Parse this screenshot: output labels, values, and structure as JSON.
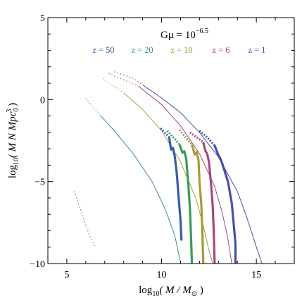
{
  "chart_data": {
    "type": "line",
    "title_main": "Gμ = 10",
    "title_exp": "−6.5",
    "xlabel": {
      "pre": "log",
      "sub": "10",
      "mid": "( M / M",
      "sub2": "⊙",
      "post": " )"
    },
    "ylabel": {
      "pre": "log",
      "sub": "10",
      "mid": "( M N Mpc",
      "sub2": "0",
      "sup": "3",
      "post": " )"
    },
    "xlim": [
      4,
      17
    ],
    "ylim": [
      -10,
      5
    ],
    "x_ticks": [
      {
        "value": 5,
        "label": "5"
      },
      {
        "value": 10,
        "label": "10"
      },
      {
        "value": 15,
        "label": "15"
      }
    ],
    "y_ticks": [
      {
        "value": 5,
        "label": "5"
      },
      {
        "value": 0,
        "label": "0"
      },
      {
        "value": -5,
        "label": "−5"
      },
      {
        "value": -10,
        "label": "−10"
      }
    ],
    "grid": false,
    "legend_placement": "top-center",
    "series": [
      {
        "name": "z = 1",
        "color": "#4a4ea6",
        "thin_dotted": [
          [
            7.5,
            1.7
          ],
          [
            8.5,
            1.3
          ],
          [
            9.0,
            0.9
          ]
        ],
        "thin": [
          [
            9.0,
            0.9
          ],
          [
            10.0,
            0.1
          ],
          [
            11.0,
            -0.8
          ],
          [
            12.0,
            -2.0
          ],
          [
            13.0,
            -3.5
          ],
          [
            14.0,
            -5.6
          ],
          [
            14.5,
            -7.2
          ],
          [
            15.0,
            -9.0
          ],
          [
            15.3,
            -10.0
          ]
        ],
        "thick_dotted": [
          [
            12.0,
            -1.9
          ],
          [
            12.4,
            -2.3
          ],
          [
            12.8,
            -2.8
          ]
        ],
        "thick": [
          [
            12.8,
            -2.8
          ],
          [
            13.0,
            -3.4
          ],
          [
            13.1,
            -3.6
          ],
          [
            13.2,
            -3.9
          ],
          [
            13.5,
            -5.0
          ],
          [
            13.7,
            -6.3
          ],
          [
            13.8,
            -7.5
          ],
          [
            13.9,
            -8.8
          ],
          [
            13.9,
            -10.0
          ]
        ]
      },
      {
        "name": "z = 6",
        "color": "#a6487f",
        "thin_dotted": [
          [
            7.2,
            1.6
          ],
          [
            8.2,
            1.1
          ],
          [
            8.8,
            0.8
          ]
        ],
        "thin": [
          [
            8.8,
            0.8
          ],
          [
            10.0,
            -0.3
          ],
          [
            11.0,
            -1.6
          ],
          [
            12.0,
            -3.3
          ],
          [
            12.8,
            -5.3
          ],
          [
            13.2,
            -6.9
          ],
          [
            13.5,
            -8.5
          ],
          [
            13.7,
            -10.0
          ]
        ],
        "thick_dotted": [
          [
            11.5,
            -2.0
          ],
          [
            11.85,
            -2.3
          ],
          [
            12.2,
            -2.6
          ]
        ],
        "thick": [
          [
            12.2,
            -2.6
          ],
          [
            12.3,
            -3.1
          ],
          [
            12.4,
            -3.3
          ],
          [
            12.5,
            -3.8
          ],
          [
            12.6,
            -5.0
          ],
          [
            12.7,
            -6.5
          ],
          [
            12.75,
            -8.0
          ],
          [
            12.8,
            -10.0
          ]
        ]
      },
      {
        "name": "z = 10",
        "color": "#a89a3a",
        "thin_dotted": [
          [
            6.9,
            1.3
          ],
          [
            7.5,
            0.8
          ],
          [
            8.0,
            0.4
          ]
        ],
        "thin": [
          [
            8.0,
            0.4
          ],
          [
            9.0,
            -0.6
          ],
          [
            10.0,
            -1.9
          ],
          [
            11.0,
            -3.8
          ],
          [
            11.8,
            -6.0
          ],
          [
            12.2,
            -7.7
          ],
          [
            12.5,
            -9.2
          ],
          [
            12.7,
            -10.0
          ]
        ],
        "thick_dotted": [
          [
            10.95,
            -1.85
          ],
          [
            11.3,
            -2.35
          ],
          [
            11.6,
            -2.75
          ]
        ],
        "thick": [
          [
            11.6,
            -2.75
          ],
          [
            11.75,
            -3.35
          ],
          [
            11.85,
            -3.2
          ],
          [
            11.95,
            -3.7
          ],
          [
            12.0,
            -5.0
          ],
          [
            12.1,
            -6.5
          ],
          [
            12.15,
            -8.0
          ],
          [
            12.2,
            -10.0
          ]
        ]
      },
      {
        "name": "z = 20",
        "color": "#3d9a5c",
        "thin_dotted": [
          [
            6.0,
            0.1
          ],
          [
            6.4,
            -0.5
          ],
          [
            6.8,
            -1.0
          ]
        ],
        "thin": [
          [
            6.8,
            -1.0
          ],
          [
            7.5,
            -1.9
          ],
          [
            8.5,
            -3.3
          ],
          [
            9.5,
            -5.0
          ],
          [
            10.2,
            -6.7
          ],
          [
            10.7,
            -8.3
          ],
          [
            11.0,
            -10.0
          ]
        ],
        "thick_dotted": [
          [
            10.3,
            -1.9
          ],
          [
            10.7,
            -2.4
          ],
          [
            10.95,
            -2.75
          ]
        ],
        "thick": [
          [
            10.95,
            -2.75
          ],
          [
            11.1,
            -3.25
          ],
          [
            11.2,
            -3.15
          ],
          [
            11.3,
            -3.6
          ],
          [
            11.4,
            -5.0
          ],
          [
            11.5,
            -6.7
          ],
          [
            11.55,
            -8.3
          ],
          [
            11.6,
            -10.0
          ]
        ]
      },
      {
        "name": "z = 50",
        "color": "#3d5aa8",
        "thin_dotted": [
          [
            5.4,
            -5.6
          ],
          [
            5.8,
            -7.0
          ],
          [
            6.2,
            -8.3
          ],
          [
            6.5,
            -9.0
          ]
        ],
        "thin": [],
        "thick_dotted": [
          [
            9.95,
            -1.75
          ],
          [
            10.2,
            -2.05
          ],
          [
            10.4,
            -2.3
          ]
        ],
        "thick": [
          [
            10.4,
            -2.3
          ],
          [
            10.5,
            -3.05
          ],
          [
            10.6,
            -2.95
          ],
          [
            10.7,
            -3.5
          ],
          [
            10.8,
            -4.5
          ],
          [
            10.9,
            -6.0
          ],
          [
            11.0,
            -7.4
          ],
          [
            11.05,
            -8.6
          ]
        ]
      }
    ]
  }
}
